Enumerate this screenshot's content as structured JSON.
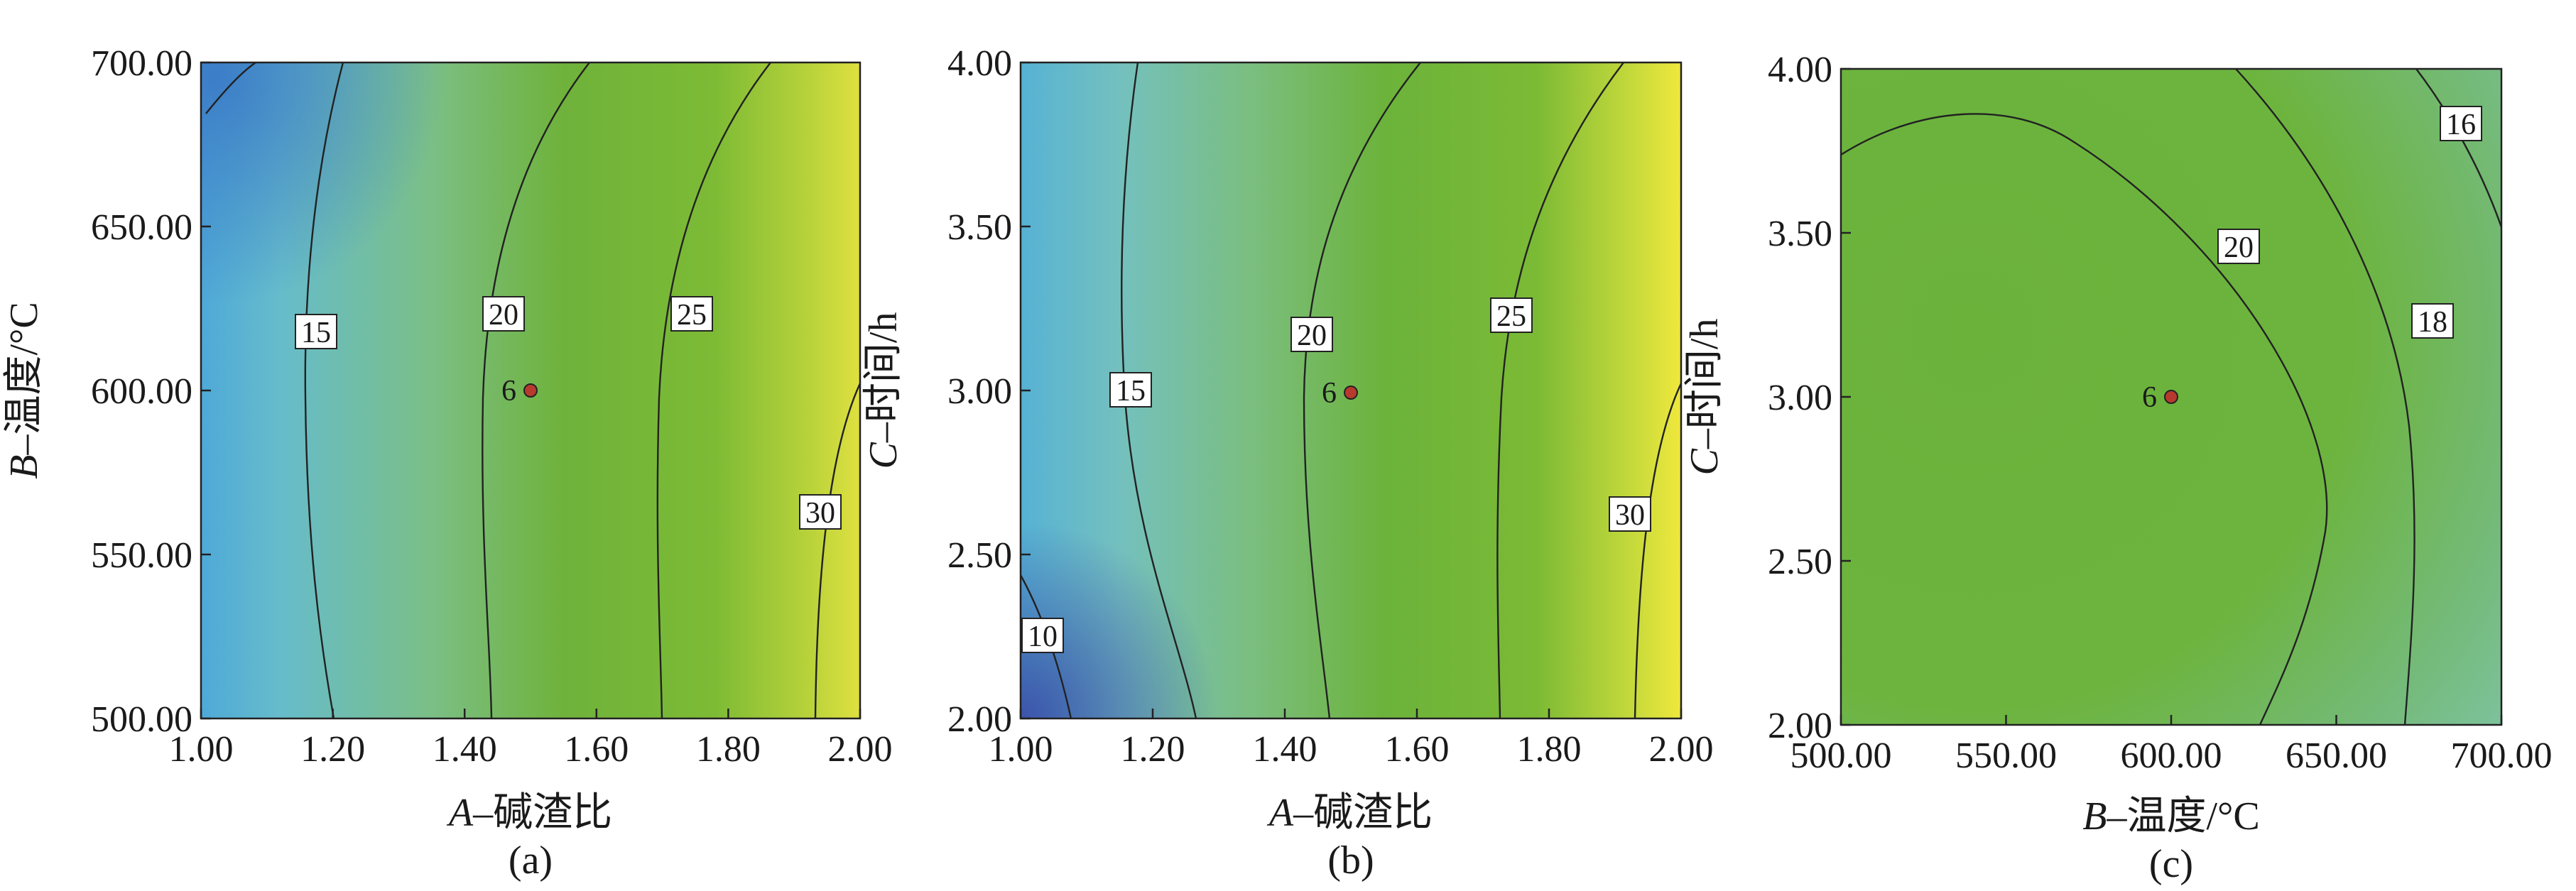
{
  "chart_data": [
    {
      "type": "contour",
      "panel_label": "(a)",
      "xlabel_var": "A",
      "xlabel_text": "–碱渣比",
      "ylabel_var": "B",
      "ylabel_text": "–温度/°C",
      "xlim": [
        1.0,
        2.0
      ],
      "ylim": [
        500,
        700
      ],
      "xticks": [
        "1.00",
        "1.20",
        "1.40",
        "1.60",
        "1.80",
        "2.00"
      ],
      "yticks": [
        "500.00",
        "550.00",
        "600.00",
        "650.00",
        "700.00"
      ],
      "contour_levels": [
        "15",
        "20",
        "25",
        "30"
      ],
      "design_point": {
        "label": "6",
        "x": 1.5,
        "y": 600
      },
      "colors": {
        "low": "#3a7fc6",
        "mid_low": "#5ab8d4",
        "mid": "#6cb33c",
        "high": "#e6e43f"
      }
    },
    {
      "type": "contour",
      "panel_label": "(b)",
      "xlabel_var": "A",
      "xlabel_text": "–碱渣比",
      "ylabel_var": "C",
      "ylabel_text": "–时间/h",
      "xlim": [
        1.0,
        2.0
      ],
      "ylim": [
        2.0,
        4.0
      ],
      "xticks": [
        "1.00",
        "1.20",
        "1.40",
        "1.60",
        "1.80",
        "2.00"
      ],
      "yticks": [
        "2.00",
        "2.50",
        "3.00",
        "3.50",
        "4.00"
      ],
      "contour_levels": [
        "10",
        "15",
        "20",
        "25",
        "30"
      ],
      "design_point": {
        "label": "6",
        "x": 1.5,
        "y": 3.0
      },
      "colors": {
        "low": "#3f5fb0",
        "mid_low": "#5ab8d4",
        "mid": "#6cb33c",
        "high": "#f0e83c"
      }
    },
    {
      "type": "contour",
      "panel_label": "(c)",
      "xlabel_var": "B",
      "xlabel_text": "–温度/°C",
      "ylabel_var": "C",
      "ylabel_text": "–时间/h",
      "xlim": [
        500,
        700
      ],
      "ylim": [
        2.0,
        4.0
      ],
      "xticks": [
        "500.00",
        "550.00",
        "600.00",
        "650.00",
        "700.00"
      ],
      "yticks": [
        "2.00",
        "2.50",
        "3.00",
        "3.50",
        "4.00"
      ],
      "contour_levels": [
        "20",
        "18",
        "16"
      ],
      "design_point": {
        "label": "6",
        "x": 600,
        "y": 3.0
      },
      "colors": {
        "mid": "#6cb33c",
        "edge": "#7cc39a"
      }
    }
  ]
}
